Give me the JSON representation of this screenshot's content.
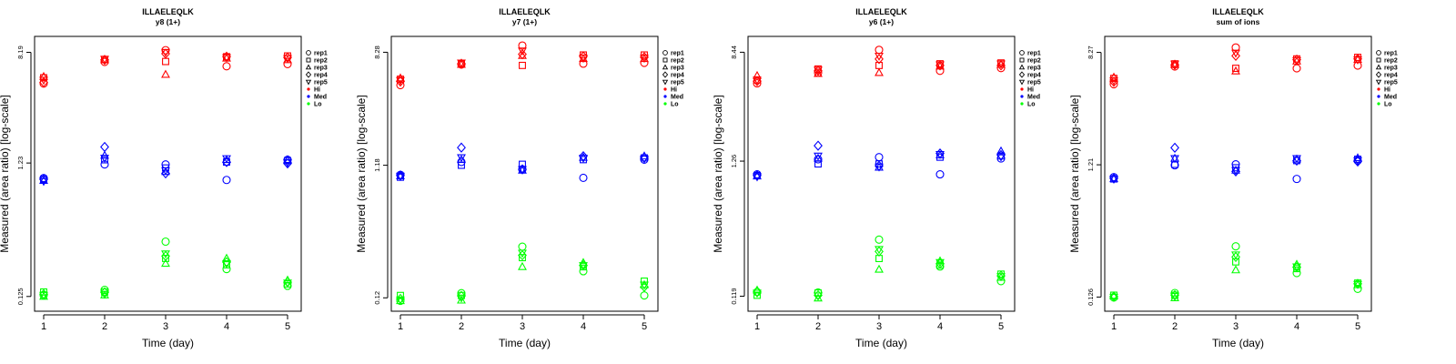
{
  "legend": {
    "shapes": [
      {
        "label": "rep1",
        "shape": "circle"
      },
      {
        "label": "rep2",
        "shape": "square"
      },
      {
        "label": "rep3",
        "shape": "triangle-up"
      },
      {
        "label": "rep4",
        "shape": "diamond"
      },
      {
        "label": "rep5",
        "shape": "triangle-down"
      }
    ],
    "colors": [
      {
        "label": "Hi",
        "color": "#ff0000"
      },
      {
        "label": "Med",
        "color": "#0000ff"
      },
      {
        "label": "Lo",
        "color": "#00ff00"
      }
    ],
    "position": "right"
  },
  "chart_data": [
    {
      "type": "scatter",
      "title": "ILLAELEQLK",
      "subtitle": "y8 (1+)",
      "xlabel": "Time (day)",
      "ylabel": "Measured (area ratio) [log-scale]",
      "x_ticks": [
        "1",
        "2",
        "3",
        "4",
        "5"
      ],
      "y_ticks": [
        "0.125",
        "1.23",
        "8.19"
      ],
      "ylim": [
        0.11,
        9.5
      ],
      "series": [
        {
          "name": "Hi",
          "color": "#ff0000",
          "reps": [
            [
              4.8,
              6.95,
              8.5,
              6.45,
              6.7
            ],
            [
              5.3,
              7.25,
              7.0,
              7.6,
              7.7
            ],
            [
              5.4,
              7.2,
              5.6,
              7.4,
              7.2
            ],
            [
              4.9,
              7.2,
              8.0,
              7.6,
              7.5
            ],
            [
              5.1,
              7.3,
              8.2,
              7.5,
              7.4
            ]
          ]
        },
        {
          "name": "Med",
          "color": "#0000ff",
          "reps": [
            [
              0.95,
              1.2,
              1.2,
              0.92,
              1.3
            ],
            [
              0.93,
              1.3,
              1.13,
              1.25,
              1.28
            ],
            [
              0.91,
              1.4,
              1.06,
              1.3,
              1.3
            ],
            [
              0.93,
              1.62,
              1.03,
              1.25,
              1.22
            ],
            [
              0.9,
              1.34,
              1.08,
              1.33,
              1.24
            ]
          ]
        },
        {
          "name": "Lo",
          "color": "#00ff00",
          "reps": [
            [
              0.128,
              0.14,
              0.32,
              0.2,
              0.15
            ],
            [
              0.135,
              0.135,
              0.24,
              0.215,
              0.155
            ],
            [
              0.125,
              0.128,
              0.22,
              0.24,
              0.165
            ],
            [
              0.13,
              0.134,
              0.25,
              0.225,
              0.16
            ],
            [
              0.128,
              0.13,
              0.26,
              0.22,
              0.158
            ]
          ]
        }
      ]
    },
    {
      "type": "scatter",
      "title": "ILLAELEQLK",
      "subtitle": "y7 (1+)",
      "xlabel": "Time (day)",
      "ylabel": "Measured (area ratio) [log-scale]",
      "x_ticks": [
        "1",
        "2",
        "3",
        "4",
        "5"
      ],
      "y_ticks": [
        "0.12",
        "1.18",
        "8.28"
      ],
      "ylim": [
        0.108,
        9.6
      ],
      "series": [
        {
          "name": "Hi",
          "color": "#ff0000",
          "reps": [
            [
              4.7,
              6.7,
              9.3,
              6.8,
              6.9
            ],
            [
              5.2,
              6.8,
              6.6,
              7.9,
              7.9
            ],
            [
              5.3,
              6.7,
              7.8,
              7.4,
              7.4
            ],
            [
              5.0,
              6.8,
              8.0,
              7.7,
              7.6
            ],
            [
              5.1,
              6.9,
              8.5,
              7.5,
              7.5
            ]
          ]
        },
        {
          "name": "Med",
          "color": "#0000ff",
          "reps": [
            [
              1.0,
              1.25,
              1.1,
              0.95,
              1.3
            ],
            [
              0.96,
              1.18,
              1.2,
              1.3,
              1.34
            ],
            [
              0.98,
              1.3,
              1.08,
              1.35,
              1.38
            ],
            [
              0.99,
              1.6,
              1.1,
              1.38,
              1.35
            ],
            [
              0.98,
              1.35,
              1.1,
              1.34,
              1.32
            ]
          ]
        },
        {
          "name": "Lo",
          "color": "#00ff00",
          "reps": [
            [
              0.114,
              0.13,
              0.29,
              0.19,
              0.125
            ],
            [
              0.125,
              0.125,
              0.24,
              0.205,
              0.16
            ],
            [
              0.114,
              0.115,
              0.205,
              0.22,
              0.15
            ],
            [
              0.118,
              0.124,
              0.25,
              0.21,
              0.145
            ],
            [
              0.116,
              0.12,
              0.26,
              0.21,
              0.15
            ]
          ]
        }
      ]
    },
    {
      "type": "scatter",
      "title": "ILLAELEQLK",
      "subtitle": "y6 (1+)",
      "xlabel": "Time (day)",
      "ylabel": "Measured (area ratio) [log-scale]",
      "x_ticks": [
        "1",
        "2",
        "3",
        "4",
        "5"
      ],
      "y_ticks": [
        "0.119",
        "1.26",
        "8.44"
      ],
      "ylim": [
        0.104,
        9.8
      ],
      "series": [
        {
          "name": "Hi",
          "color": "#ff0000",
          "reps": [
            [
              4.9,
              5.9,
              8.8,
              6.1,
              6.4
            ],
            [
              5.2,
              6.3,
              6.7,
              6.9,
              7.0
            ],
            [
              5.6,
              5.8,
              5.9,
              6.6,
              6.8
            ],
            [
              5.1,
              6.1,
              7.5,
              6.7,
              6.7
            ],
            [
              5.2,
              6.2,
              7.9,
              6.8,
              6.9
            ]
          ]
        },
        {
          "name": "Med",
          "color": "#0000ff",
          "reps": [
            [
              1.0,
              1.3,
              1.35,
              1.0,
              1.32
            ],
            [
              0.98,
              1.2,
              1.2,
              1.35,
              1.38
            ],
            [
              0.97,
              1.32,
              1.13,
              1.4,
              1.5
            ],
            [
              0.98,
              1.65,
              1.16,
              1.44,
              1.4
            ],
            [
              0.96,
              1.38,
              1.14,
              1.42,
              1.36
            ]
          ]
        },
        {
          "name": "Lo",
          "color": "#00ff00",
          "reps": [
            [
              0.128,
              0.127,
              0.32,
              0.2,
              0.155
            ],
            [
              0.121,
              0.126,
              0.23,
              0.205,
              0.175
            ],
            [
              0.132,
              0.115,
              0.19,
              0.22,
              0.165
            ],
            [
              0.128,
              0.121,
              0.26,
              0.21,
              0.17
            ],
            [
              0.126,
              0.12,
              0.27,
              0.215,
              0.168
            ]
          ]
        }
      ]
    },
    {
      "type": "scatter",
      "title": "ILLAELEQLK",
      "subtitle": "sum of ions",
      "xlabel": "Time (day)",
      "ylabel": "Measured (area ratio) [log-scale]",
      "x_ticks": [
        "1",
        "2",
        "3",
        "4",
        "5"
      ],
      "y_ticks": [
        "0.126",
        "1.21",
        "8.27"
      ],
      "ylim": [
        0.112,
        9.6
      ],
      "series": [
        {
          "name": "Hi",
          "color": "#ff0000",
          "reps": [
            [
              4.8,
              6.5,
              9.0,
              6.3,
              6.6
            ],
            [
              5.3,
              6.8,
              6.3,
              7.4,
              7.6
            ],
            [
              5.4,
              6.7,
              6.0,
              7.1,
              7.3
            ],
            [
              5.0,
              6.7,
              7.8,
              7.3,
              7.4
            ],
            [
              5.1,
              6.8,
              8.2,
              7.2,
              7.3
            ]
          ]
        },
        {
          "name": "Med",
          "color": "#0000ff",
          "reps": [
            [
              0.98,
              1.2,
              1.22,
              0.95,
              1.3
            ],
            [
              0.95,
              1.22,
              1.15,
              1.3,
              1.33
            ],
            [
              0.95,
              1.35,
              1.1,
              1.33,
              1.36
            ],
            [
              0.96,
              1.62,
              1.08,
              1.3,
              1.28
            ],
            [
              0.95,
              1.35,
              1.1,
              1.35,
              1.3
            ]
          ]
        },
        {
          "name": "Lo",
          "color": "#00ff00",
          "reps": [
            [
              0.125,
              0.135,
              0.3,
              0.19,
              0.145
            ],
            [
              0.13,
              0.13,
              0.23,
              0.205,
              0.16
            ],
            [
              0.128,
              0.124,
              0.2,
              0.22,
              0.155
            ],
            [
              0.127,
              0.13,
              0.25,
              0.21,
              0.158
            ],
            [
              0.126,
              0.128,
              0.26,
              0.212,
              0.157
            ]
          ]
        }
      ]
    }
  ]
}
